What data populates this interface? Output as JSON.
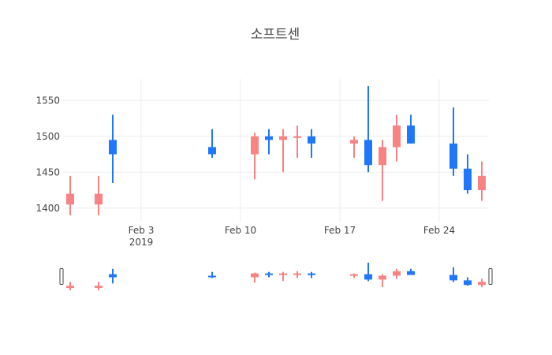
{
  "chart_data": {
    "type": "candlestick",
    "title": "소프트센",
    "xlabel": "",
    "ylabel": "",
    "x_ticks": [
      {
        "date": "2019-02-03",
        "label": "Feb 3",
        "sublabel": "2019"
      },
      {
        "date": "2019-02-10",
        "label": "Feb 10",
        "sublabel": ""
      },
      {
        "date": "2019-02-17",
        "label": "Feb 17",
        "sublabel": ""
      },
      {
        "date": "2019-02-24",
        "label": "Feb 24",
        "sublabel": ""
      }
    ],
    "y_ticks": [
      1400,
      1450,
      1500,
      1550
    ],
    "xlim": [
      "2019-01-29",
      "2019-02-27"
    ],
    "ylim": [
      1380,
      1580
    ],
    "grid": true,
    "legend": "none",
    "rangeslider": true,
    "increasing_color": "#1f77fe",
    "decreasing_color": "#f88383",
    "candles": [
      {
        "date": "2019-01-29",
        "open": 1420,
        "high": 1445,
        "low": 1390,
        "close": 1405
      },
      {
        "date": "2019-01-31",
        "open": 1420,
        "high": 1445,
        "low": 1390,
        "close": 1405
      },
      {
        "date": "2019-02-01",
        "open": 1475,
        "high": 1530,
        "low": 1435,
        "close": 1495
      },
      {
        "date": "2019-02-08",
        "open": 1475,
        "high": 1510,
        "low": 1470,
        "close": 1485
      },
      {
        "date": "2019-02-11",
        "open": 1500,
        "high": 1505,
        "low": 1440,
        "close": 1475
      },
      {
        "date": "2019-02-12",
        "open": 1495,
        "high": 1510,
        "low": 1475,
        "close": 1500
      },
      {
        "date": "2019-02-13",
        "open": 1500,
        "high": 1510,
        "low": 1450,
        "close": 1495
      },
      {
        "date": "2019-02-14",
        "open": 1500,
        "high": 1515,
        "low": 1470,
        "close": 1499
      },
      {
        "date": "2019-02-15",
        "open": 1490,
        "high": 1510,
        "low": 1470,
        "close": 1500
      },
      {
        "date": "2019-02-18",
        "open": 1495,
        "high": 1500,
        "low": 1470,
        "close": 1490
      },
      {
        "date": "2019-02-19",
        "open": 1460,
        "high": 1570,
        "low": 1450,
        "close": 1495
      },
      {
        "date": "2019-02-20",
        "open": 1485,
        "high": 1495,
        "low": 1410,
        "close": 1460
      },
      {
        "date": "2019-02-21",
        "open": 1515,
        "high": 1530,
        "low": 1465,
        "close": 1485
      },
      {
        "date": "2019-02-22",
        "open": 1490,
        "high": 1530,
        "low": 1490,
        "close": 1515
      },
      {
        "date": "2019-02-25",
        "open": 1455,
        "high": 1540,
        "low": 1445,
        "close": 1490
      },
      {
        "date": "2019-02-26",
        "open": 1425,
        "high": 1475,
        "low": 1420,
        "close": 1455
      },
      {
        "date": "2019-02-27",
        "open": 1445,
        "high": 1465,
        "low": 1410,
        "close": 1425
      }
    ]
  }
}
